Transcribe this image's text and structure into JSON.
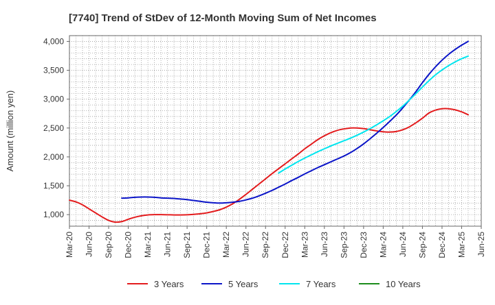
{
  "chart_data": {
    "type": "line",
    "title": "[7740]  Trend of StDev of 12-Month Moving Sum of Net Incomes",
    "xlabel": "",
    "ylabel": "Amount (million yen)",
    "ylim": [
      800,
      4100
    ],
    "y_ticks": [
      1000,
      1500,
      2000,
      2500,
      3000,
      3500,
      4000
    ],
    "y_tick_labels": [
      "1,000",
      "1,500",
      "2,000",
      "2,500",
      "3,000",
      "3,500",
      "4,000"
    ],
    "x_tick_labels": [
      "Mar-20",
      "Jun-20",
      "Sep-20",
      "Dec-20",
      "Mar-21",
      "Jun-21",
      "Sep-21",
      "Dec-21",
      "Mar-22",
      "Jun-22",
      "Sep-22",
      "Dec-22",
      "Mar-23",
      "Jun-23",
      "Sep-23",
      "Dec-23",
      "Mar-24",
      "Jun-24",
      "Sep-24",
      "Dec-24",
      "Mar-25",
      "Jun-25"
    ],
    "grid": true,
    "legend_position": "bottom",
    "series": [
      {
        "name": "3 Years",
        "color": "#e31a1c",
        "points": [
          [
            "Mar-20",
            1250
          ],
          [
            "Apr-20",
            1220
          ],
          [
            "May-20",
            1170
          ],
          [
            "Jun-20",
            1100
          ],
          [
            "Jul-20",
            1030
          ],
          [
            "Aug-20",
            960
          ],
          [
            "Sep-20",
            900
          ],
          [
            "Oct-20",
            870
          ],
          [
            "Nov-20",
            880
          ],
          [
            "Dec-20",
            920
          ],
          [
            "Jan-21",
            955
          ],
          [
            "Feb-21",
            980
          ],
          [
            "Mar-21",
            995
          ],
          [
            "Apr-21",
            1000
          ],
          [
            "May-21",
            1000
          ],
          [
            "Jun-21",
            998
          ],
          [
            "Jul-21",
            995
          ],
          [
            "Aug-21",
            995
          ],
          [
            "Sep-21",
            998
          ],
          [
            "Oct-21",
            1005
          ],
          [
            "Nov-21",
            1015
          ],
          [
            "Dec-21",
            1030
          ],
          [
            "Jan-22",
            1055
          ],
          [
            "Feb-22",
            1085
          ],
          [
            "Mar-22",
            1130
          ],
          [
            "Apr-22",
            1190
          ],
          [
            "May-22",
            1265
          ],
          [
            "Jun-22",
            1350
          ],
          [
            "Jul-22",
            1440
          ],
          [
            "Aug-22",
            1530
          ],
          [
            "Sep-22",
            1620
          ],
          [
            "Oct-22",
            1710
          ],
          [
            "Nov-22",
            1795
          ],
          [
            "Dec-22",
            1880
          ],
          [
            "Jan-23",
            1965
          ],
          [
            "Feb-23",
            2050
          ],
          [
            "Mar-23",
            2140
          ],
          [
            "Apr-23",
            2220
          ],
          [
            "May-23",
            2300
          ],
          [
            "Jun-23",
            2365
          ],
          [
            "Jul-23",
            2420
          ],
          [
            "Aug-23",
            2460
          ],
          [
            "Sep-23",
            2485
          ],
          [
            "Oct-23",
            2500
          ],
          [
            "Nov-23",
            2500
          ],
          [
            "Dec-23",
            2490
          ],
          [
            "Jan-24",
            2470
          ],
          [
            "Feb-24",
            2450
          ],
          [
            "Mar-24",
            2435
          ],
          [
            "Apr-24",
            2430
          ],
          [
            "May-24",
            2440
          ],
          [
            "Jun-24",
            2470
          ],
          [
            "Jul-24",
            2520
          ],
          [
            "Aug-24",
            2590
          ],
          [
            "Sep-24",
            2670
          ],
          [
            "Oct-24",
            2760
          ],
          [
            "Nov-24",
            2810
          ],
          [
            "Dec-24",
            2835
          ],
          [
            "Jan-25",
            2835
          ],
          [
            "Feb-25",
            2815
          ],
          [
            "Mar-25",
            2780
          ],
          [
            "Apr-25",
            2730
          ]
        ]
      },
      {
        "name": "5 Years",
        "color": "#0a14c8",
        "points": [
          [
            "Nov-20",
            1285
          ],
          [
            "Dec-20",
            1290
          ],
          [
            "Jan-21",
            1300
          ],
          [
            "Feb-21",
            1305
          ],
          [
            "Mar-21",
            1305
          ],
          [
            "Apr-21",
            1300
          ],
          [
            "May-21",
            1290
          ],
          [
            "Jun-21",
            1285
          ],
          [
            "Jul-21",
            1280
          ],
          [
            "Aug-21",
            1270
          ],
          [
            "Sep-21",
            1260
          ],
          [
            "Oct-21",
            1245
          ],
          [
            "Nov-21",
            1230
          ],
          [
            "Dec-21",
            1215
          ],
          [
            "Jan-22",
            1205
          ],
          [
            "Feb-22",
            1200
          ],
          [
            "Mar-22",
            1205
          ],
          [
            "Apr-22",
            1215
          ],
          [
            "May-22",
            1230
          ],
          [
            "Jun-22",
            1255
          ],
          [
            "Jul-22",
            1285
          ],
          [
            "Aug-22",
            1325
          ],
          [
            "Sep-22",
            1370
          ],
          [
            "Oct-22",
            1420
          ],
          [
            "Nov-22",
            1475
          ],
          [
            "Dec-22",
            1530
          ],
          [
            "Jan-23",
            1590
          ],
          [
            "Feb-23",
            1645
          ],
          [
            "Mar-23",
            1705
          ],
          [
            "Apr-23",
            1760
          ],
          [
            "May-23",
            1815
          ],
          [
            "Jun-23",
            1865
          ],
          [
            "Jul-23",
            1915
          ],
          [
            "Aug-23",
            1965
          ],
          [
            "Sep-23",
            2015
          ],
          [
            "Oct-23",
            2075
          ],
          [
            "Nov-23",
            2145
          ],
          [
            "Dec-23",
            2225
          ],
          [
            "Jan-24",
            2315
          ],
          [
            "Feb-24",
            2410
          ],
          [
            "Mar-24",
            2510
          ],
          [
            "Apr-24",
            2615
          ],
          [
            "May-24",
            2725
          ],
          [
            "Jun-24",
            2850
          ],
          [
            "Jul-24",
            2985
          ],
          [
            "Aug-24",
            3130
          ],
          [
            "Sep-24",
            3285
          ],
          [
            "Oct-24",
            3430
          ],
          [
            "Nov-24",
            3560
          ],
          [
            "Dec-24",
            3675
          ],
          [
            "Jan-25",
            3775
          ],
          [
            "Feb-25",
            3860
          ],
          [
            "Mar-25",
            3935
          ],
          [
            "Apr-25",
            4000
          ]
        ]
      },
      {
        "name": "7 Years",
        "color": "#00e5ee",
        "points": [
          [
            "Nov-22",
            1720
          ],
          [
            "Dec-22",
            1790
          ],
          [
            "Jan-23",
            1855
          ],
          [
            "Feb-23",
            1920
          ],
          [
            "Mar-23",
            1980
          ],
          [
            "Apr-23",
            2035
          ],
          [
            "May-23",
            2090
          ],
          [
            "Jun-23",
            2140
          ],
          [
            "Jul-23",
            2190
          ],
          [
            "Aug-23",
            2235
          ],
          [
            "Sep-23",
            2280
          ],
          [
            "Oct-23",
            2325
          ],
          [
            "Nov-23",
            2375
          ],
          [
            "Dec-23",
            2430
          ],
          [
            "Jan-24",
            2490
          ],
          [
            "Feb-24",
            2555
          ],
          [
            "Mar-24",
            2625
          ],
          [
            "Apr-24",
            2700
          ],
          [
            "May-24",
            2785
          ],
          [
            "Jun-24",
            2880
          ],
          [
            "Jul-24",
            2985
          ],
          [
            "Aug-24",
            3095
          ],
          [
            "Sep-24",
            3210
          ],
          [
            "Oct-24",
            3320
          ],
          [
            "Nov-24",
            3420
          ],
          [
            "Dec-24",
            3505
          ],
          [
            "Jan-25",
            3580
          ],
          [
            "Feb-25",
            3645
          ],
          [
            "Mar-25",
            3700
          ],
          [
            "Apr-25",
            3745
          ]
        ]
      },
      {
        "name": "10 Years",
        "color": "#1a8c1a",
        "points": []
      }
    ]
  }
}
